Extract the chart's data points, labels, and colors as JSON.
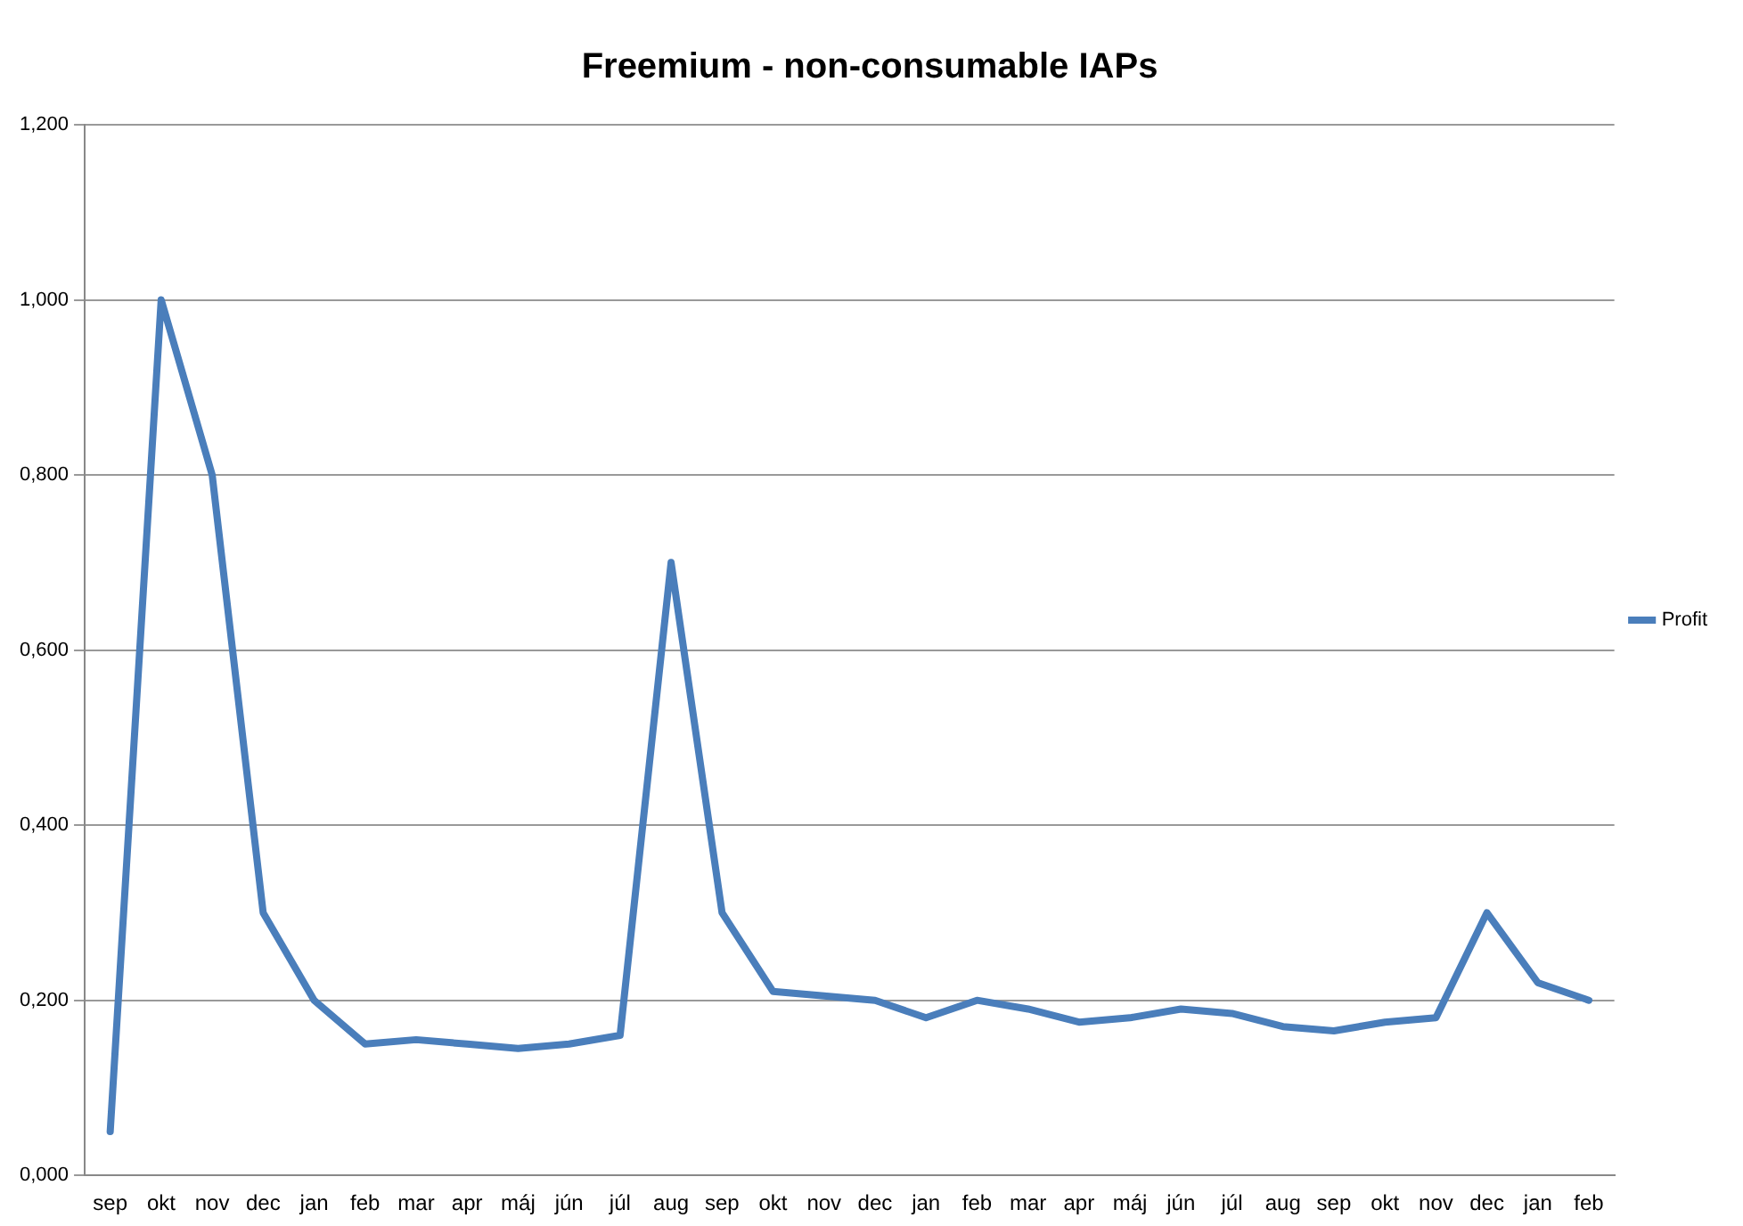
{
  "chart_data": {
    "type": "line",
    "title": "Freemium - non-consumable IAPs",
    "categories": [
      "sep",
      "okt",
      "nov",
      "dec",
      "jan",
      "feb",
      "mar",
      "apr",
      "máj",
      "jún",
      "júl",
      "aug",
      "sep",
      "okt",
      "nov",
      "dec",
      "jan",
      "feb",
      "mar",
      "apr",
      "máj",
      "jún",
      "júl",
      "aug",
      "sep",
      "okt",
      "nov",
      "dec",
      "jan",
      "feb"
    ],
    "series": [
      {
        "name": "Profit",
        "color": "#4a7ebb",
        "values": [
          0.05,
          1.0,
          0.8,
          0.3,
          0.2,
          0.15,
          0.155,
          0.15,
          0.145,
          0.15,
          0.16,
          0.7,
          0.3,
          0.21,
          0.205,
          0.2,
          0.18,
          0.2,
          0.19,
          0.175,
          0.18,
          0.19,
          0.185,
          0.17,
          0.165,
          0.175,
          0.18,
          0.3,
          0.22,
          0.2
        ]
      }
    ],
    "ylim": [
      0,
      1.2
    ],
    "yticks": [
      {
        "value": 0,
        "label": "0,000"
      },
      {
        "value": 0.2,
        "label": "0,200"
      },
      {
        "value": 0.4,
        "label": "0,400"
      },
      {
        "value": 0.6,
        "label": "0,600"
      },
      {
        "value": 0.8,
        "label": "0,800"
      },
      {
        "value": 1.0,
        "label": "1,000"
      },
      {
        "value": 1.2,
        "label": "1,200"
      }
    ],
    "grid": "y",
    "legend": "right",
    "marker": "none",
    "line_style": "solid"
  }
}
